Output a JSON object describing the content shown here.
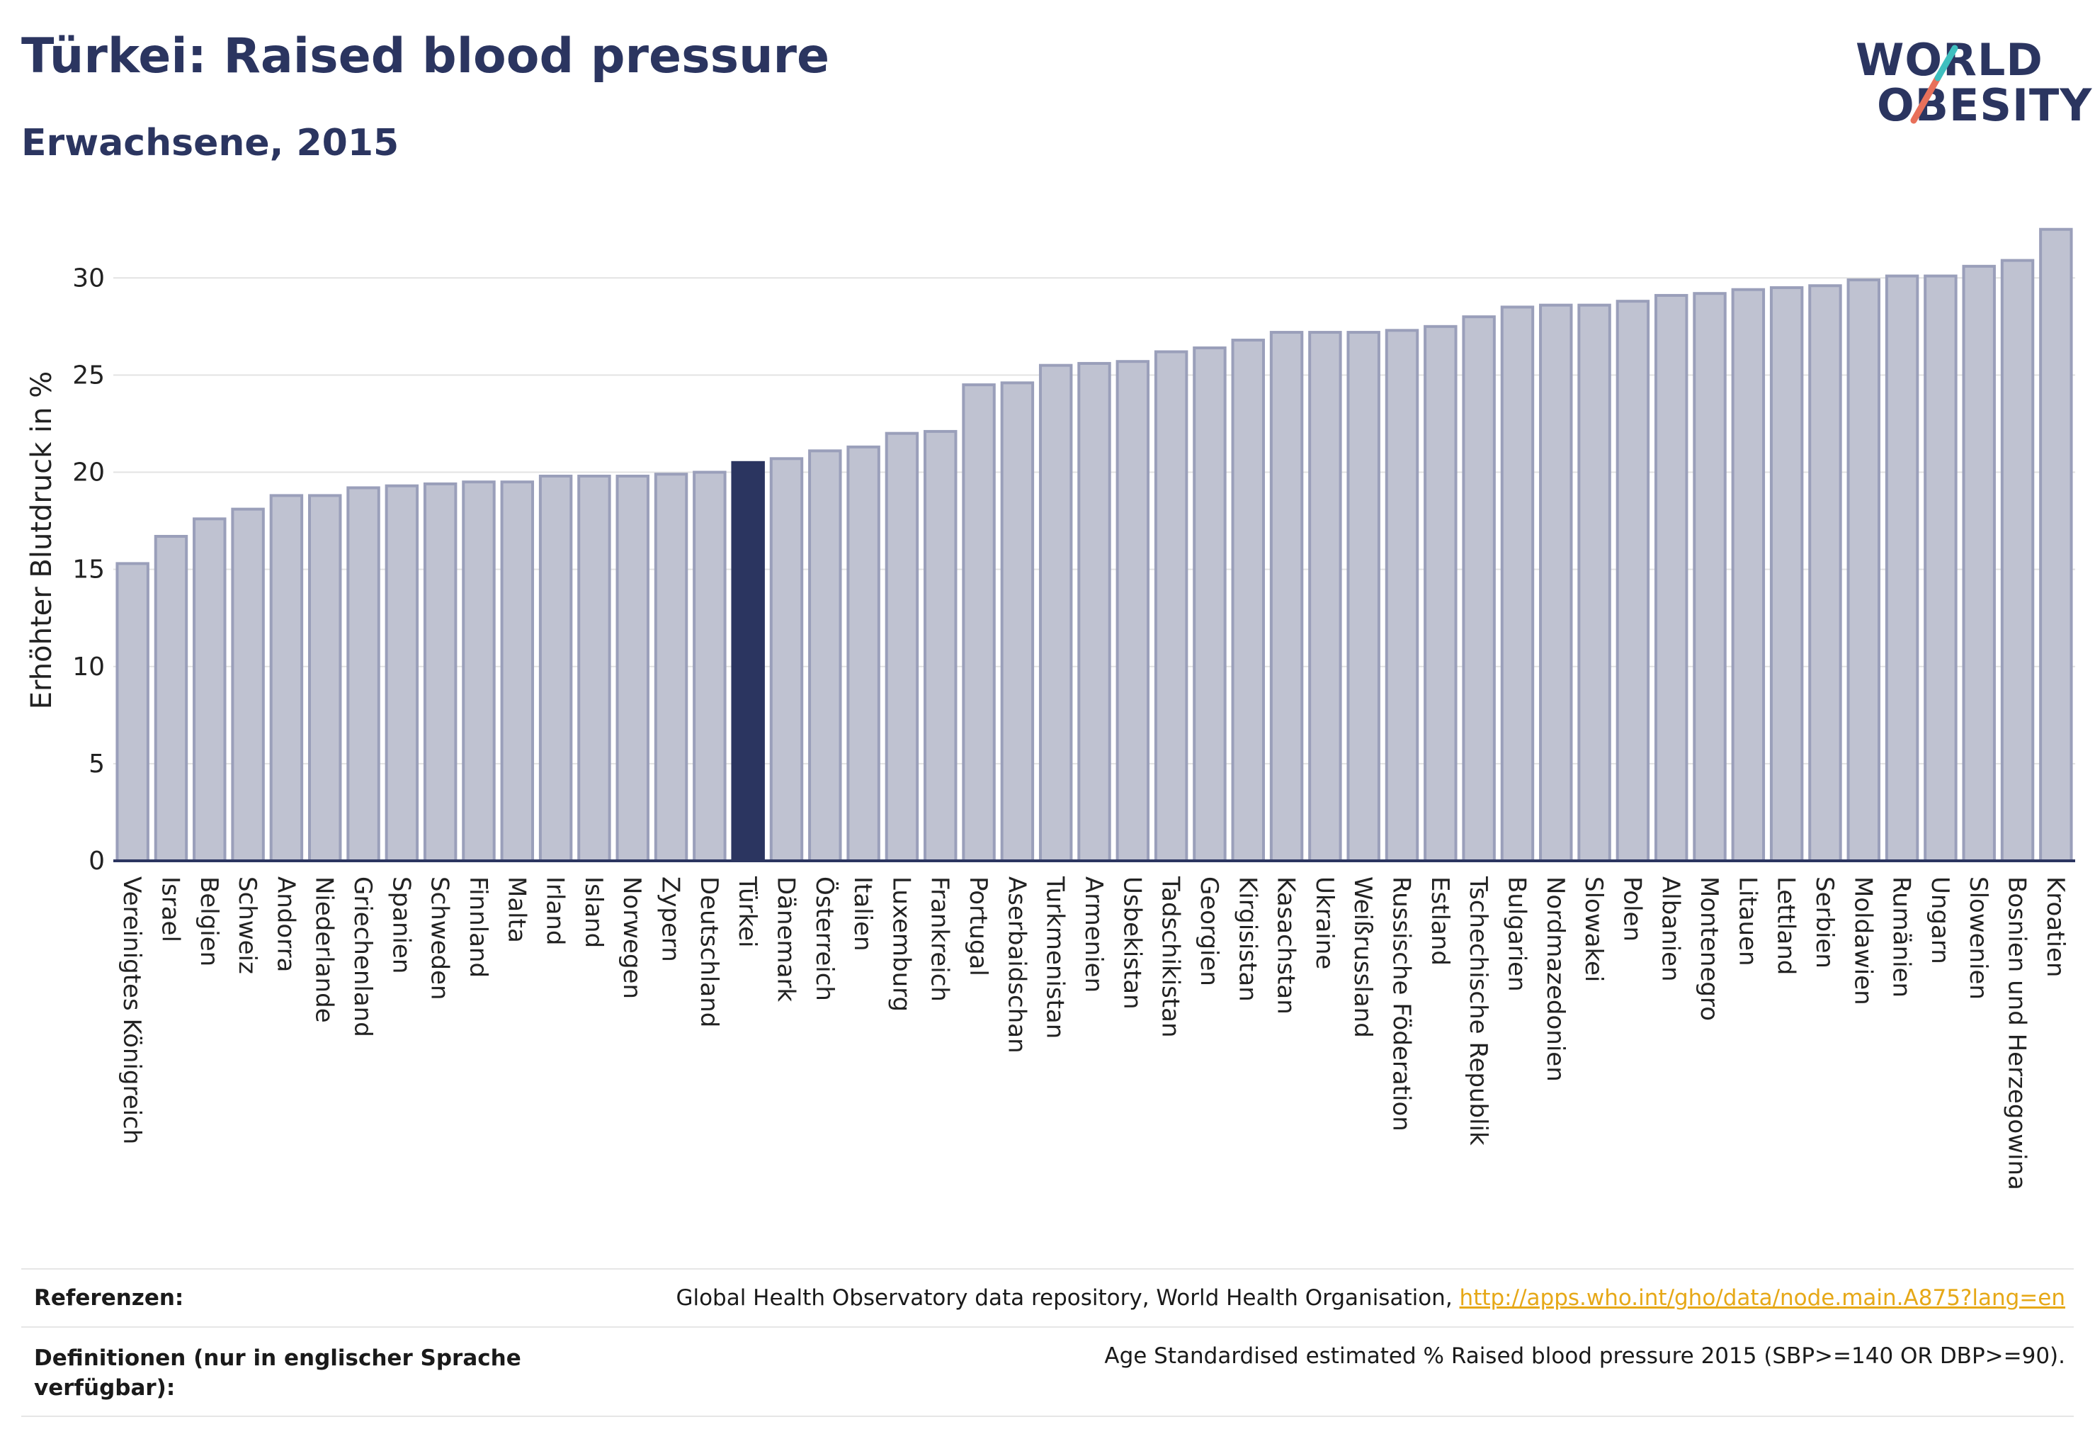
{
  "header": {
    "title": "Türkei: Raised blood pressure",
    "subtitle": "Erwachsene, 2015"
  },
  "logo": {
    "line1": "WORLD",
    "line2": "OBESITY",
    "colors": {
      "text": "#2b3560",
      "teal": "#3fbfbf",
      "coral": "#e8705a"
    }
  },
  "colors": {
    "bar": "#bfc2d1",
    "bar_stroke": "#9a9fba",
    "highlight": "#2b3560",
    "axis": "#2b3560",
    "grid": "#e3e3e3"
  },
  "chart_data": {
    "type": "bar",
    "ylabel": "Erhöhter Blutdruck in %",
    "ylim": [
      0,
      33
    ],
    "yticks": [
      0,
      5,
      10,
      15,
      20,
      25,
      30
    ],
    "highlight": "Türkei",
    "categories": [
      "Vereinigtes Königreich",
      "Israel",
      "Belgien",
      "Schweiz",
      "Andorra",
      "Niederlande",
      "Griechenland",
      "Spanien",
      "Schweden",
      "Finnland",
      "Malta",
      "Irland",
      "Island",
      "Norwegen",
      "Zypern",
      "Deutschland",
      "Türkei",
      "Dänemark",
      "Österreich",
      "Italien",
      "Luxemburg",
      "Frankreich",
      "Portugal",
      "Aserbaidschan",
      "Turkmenistan",
      "Armenien",
      "Usbekistan",
      "Tadschikistan",
      "Georgien",
      "Kirgisistan",
      "Kasachstan",
      "Ukraine",
      "Weißrussland",
      "Russische Föderation",
      "Estland",
      "Tschechische Republik",
      "Bulgarien",
      "Nordmazedonien",
      "Slowakei",
      "Polen",
      "Albanien",
      "Montenegro",
      "Litauen",
      "Lettland",
      "Serbien",
      "Moldawien",
      "Rumänien",
      "Ungarn",
      "Slowenien",
      "Bosnien und Herzegowina",
      "Kroatien"
    ],
    "values": [
      15.3,
      16.7,
      17.6,
      18.1,
      18.8,
      18.8,
      19.2,
      19.3,
      19.4,
      19.5,
      19.5,
      19.8,
      19.8,
      19.8,
      19.9,
      20.0,
      20.5,
      20.7,
      21.1,
      21.3,
      22.0,
      22.1,
      24.5,
      24.6,
      25.5,
      25.6,
      25.7,
      26.2,
      26.4,
      26.8,
      27.2,
      27.2,
      27.2,
      27.3,
      27.5,
      28.0,
      28.5,
      28.6,
      28.6,
      28.8,
      29.1,
      29.2,
      29.4,
      29.5,
      29.6,
      29.9,
      30.1,
      30.1,
      30.6,
      30.9,
      32.5
    ]
  },
  "footer": {
    "references_label": "Referenzen:",
    "references_text": "Global Health Observatory data repository, World Health Organisation, ",
    "references_link": "http://apps.who.int/gho/data/node.main.A875?lang=en",
    "definitions_label_line1": "Definitionen (nur in englischer Sprache",
    "definitions_label_line2": "verfügbar):",
    "definitions_text": "Age Standardised estimated % Raised blood pressure 2015 (SBP>=140 OR DBP>=90)."
  }
}
